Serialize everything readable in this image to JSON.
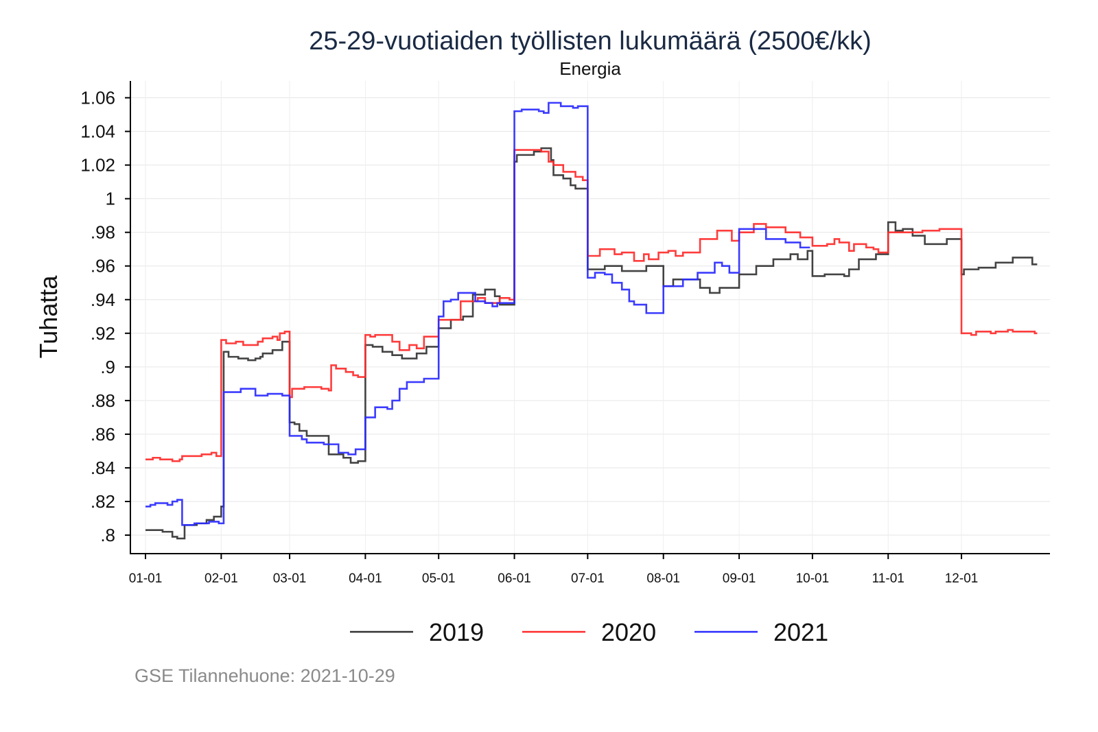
{
  "chart_data": {
    "type": "line",
    "title": "25-29-vuotiaiden työllisten lukumäärä (2500€/kk)",
    "subtitle": "Energia",
    "ylabel": "Tuhatta",
    "xlabel": "",
    "ylim": [
      0.789,
      1.07
    ],
    "yticks": [
      0.8,
      0.82,
      0.84,
      0.86,
      0.88,
      0.9,
      0.92,
      0.94,
      0.96,
      0.98,
      1.0,
      1.02,
      1.04,
      1.06
    ],
    "ytick_labels": [
      ".8",
      ".82",
      ".84",
      ".86",
      ".88",
      ".9",
      ".92",
      ".94",
      ".96",
      ".98",
      "1",
      "1.02",
      "1.04",
      "1.06"
    ],
    "xticks": [
      "01-01",
      "02-01",
      "03-01",
      "04-01",
      "05-01",
      "06-01",
      "07-01",
      "08-01",
      "09-01",
      "10-01",
      "11-01",
      "12-01"
    ],
    "grid": true,
    "legend_placement": "bottom",
    "step": true,
    "series": [
      {
        "name": "2019",
        "color": "#333333",
        "end": "12-31",
        "points": [
          [
            "01-01",
            0.803
          ],
          [
            "01-08",
            0.802
          ],
          [
            "01-12",
            0.799
          ],
          [
            "01-14",
            0.798
          ],
          [
            "01-17",
            0.806
          ],
          [
            "01-22",
            0.807
          ],
          [
            "01-26",
            0.809
          ],
          [
            "01-29",
            0.811
          ],
          [
            "02-01",
            0.817
          ],
          [
            "02-02",
            0.909
          ],
          [
            "02-04",
            0.906
          ],
          [
            "02-08",
            0.905
          ],
          [
            "02-12",
            0.904
          ],
          [
            "02-15",
            0.905
          ],
          [
            "02-17",
            0.906
          ],
          [
            "02-18",
            0.908
          ],
          [
            "02-22",
            0.91
          ],
          [
            "02-26",
            0.915
          ],
          [
            "03-01",
            0.867
          ],
          [
            "03-03",
            0.866
          ],
          [
            "03-05",
            0.862
          ],
          [
            "03-08",
            0.859
          ],
          [
            "03-17",
            0.848
          ],
          [
            "03-23",
            0.846
          ],
          [
            "03-26",
            0.843
          ],
          [
            "03-29",
            0.844
          ],
          [
            "04-01",
            0.913
          ],
          [
            "04-04",
            0.912
          ],
          [
            "04-08",
            0.909
          ],
          [
            "04-12",
            0.907
          ],
          [
            "04-16",
            0.905
          ],
          [
            "04-22",
            0.908
          ],
          [
            "04-26",
            0.912
          ],
          [
            "05-01",
            0.923
          ],
          [
            "05-06",
            0.928
          ],
          [
            "05-11",
            0.93
          ],
          [
            "05-15",
            0.943
          ],
          [
            "05-20",
            0.946
          ],
          [
            "05-24",
            0.942
          ],
          [
            "05-26",
            0.937
          ],
          [
            "06-01",
            1.022
          ],
          [
            "06-02",
            1.026
          ],
          [
            "06-09",
            1.028
          ],
          [
            "06-12",
            1.03
          ],
          [
            "06-16",
            1.023
          ],
          [
            "06-17",
            1.014
          ],
          [
            "06-21",
            1.012
          ],
          [
            "06-24",
            1.008
          ],
          [
            "06-26",
            1.006
          ],
          [
            "07-01",
            0.958
          ],
          [
            "07-08",
            0.96
          ],
          [
            "07-15",
            0.957
          ],
          [
            "07-25",
            0.96
          ],
          [
            "08-01",
            0.948
          ],
          [
            "08-05",
            0.952
          ],
          [
            "08-16",
            0.947
          ],
          [
            "08-20",
            0.944
          ],
          [
            "08-24",
            0.947
          ],
          [
            "09-01",
            0.955
          ],
          [
            "09-08",
            0.96
          ],
          [
            "09-15",
            0.964
          ],
          [
            "09-22",
            0.967
          ],
          [
            "09-25",
            0.964
          ],
          [
            "09-29",
            0.969
          ],
          [
            "10-01",
            0.954
          ],
          [
            "10-06",
            0.955
          ],
          [
            "10-14",
            0.954
          ],
          [
            "10-16",
            0.958
          ],
          [
            "10-20",
            0.964
          ],
          [
            "10-27",
            0.967
          ],
          [
            "11-01",
            0.986
          ],
          [
            "11-04",
            0.981
          ],
          [
            "11-07",
            0.982
          ],
          [
            "11-11",
            0.978
          ],
          [
            "11-16",
            0.973
          ],
          [
            "11-25",
            0.976
          ],
          [
            "12-01",
            0.955
          ],
          [
            "12-02",
            0.958
          ],
          [
            "12-08",
            0.959
          ],
          [
            "12-15",
            0.962
          ],
          [
            "12-22",
            0.965
          ],
          [
            "12-30",
            0.961
          ]
        ]
      },
      {
        "name": "2020",
        "color": "#ff2a2a",
        "end": "12-31",
        "points": [
          [
            "01-01",
            0.845
          ],
          [
            "01-04",
            0.846
          ],
          [
            "01-07",
            0.845
          ],
          [
            "01-12",
            0.844
          ],
          [
            "01-15",
            0.845
          ],
          [
            "01-16",
            0.847
          ],
          [
            "01-24",
            0.848
          ],
          [
            "01-28",
            0.849
          ],
          [
            "01-30",
            0.847
          ],
          [
            "02-01",
            0.916
          ],
          [
            "02-03",
            0.914
          ],
          [
            "02-07",
            0.915
          ],
          [
            "02-10",
            0.913
          ],
          [
            "02-16",
            0.915
          ],
          [
            "02-18",
            0.917
          ],
          [
            "02-22",
            0.918
          ],
          [
            "02-24",
            0.916
          ],
          [
            "02-25",
            0.92
          ],
          [
            "02-27",
            0.921
          ],
          [
            "03-01",
            0.882
          ],
          [
            "03-02",
            0.887
          ],
          [
            "03-07",
            0.888
          ],
          [
            "03-14",
            0.887
          ],
          [
            "03-17",
            0.886
          ],
          [
            "03-18",
            0.901
          ],
          [
            "03-20",
            0.899
          ],
          [
            "03-24",
            0.897
          ],
          [
            "03-27",
            0.895
          ],
          [
            "03-29",
            0.894
          ],
          [
            "04-01",
            0.919
          ],
          [
            "04-03",
            0.918
          ],
          [
            "04-05",
            0.919
          ],
          [
            "04-12",
            0.915
          ],
          [
            "04-15",
            0.91
          ],
          [
            "04-19",
            0.913
          ],
          [
            "04-22",
            0.911
          ],
          [
            "04-25",
            0.918
          ],
          [
            "05-01",
            0.928
          ],
          [
            "05-10",
            0.939
          ],
          [
            "05-17",
            0.941
          ],
          [
            "05-20",
            0.938
          ],
          [
            "05-26",
            0.941
          ],
          [
            "05-30",
            0.94
          ],
          [
            "06-01",
            1.029
          ],
          [
            "06-12",
            1.028
          ],
          [
            "06-15",
            1.022
          ],
          [
            "06-17",
            1.02
          ],
          [
            "06-21",
            1.016
          ],
          [
            "06-26",
            1.013
          ],
          [
            "06-29",
            1.011
          ],
          [
            "07-01",
            0.966
          ],
          [
            "07-06",
            0.97
          ],
          [
            "07-12",
            0.967
          ],
          [
            "07-15",
            0.968
          ],
          [
            "07-20",
            0.963
          ],
          [
            "07-24",
            0.967
          ],
          [
            "07-26",
            0.964
          ],
          [
            "07-30",
            0.968
          ],
          [
            "08-03",
            0.969
          ],
          [
            "08-06",
            0.966
          ],
          [
            "08-09",
            0.968
          ],
          [
            "08-16",
            0.976
          ],
          [
            "08-23",
            0.981
          ],
          [
            "08-29",
            0.975
          ],
          [
            "09-01",
            0.98
          ],
          [
            "09-07",
            0.985
          ],
          [
            "09-12",
            0.983
          ],
          [
            "09-20",
            0.98
          ],
          [
            "09-26",
            0.977
          ],
          [
            "10-01",
            0.972
          ],
          [
            "10-07",
            0.973
          ],
          [
            "10-10",
            0.976
          ],
          [
            "10-12",
            0.974
          ],
          [
            "10-16",
            0.969
          ],
          [
            "10-18",
            0.973
          ],
          [
            "10-23",
            0.971
          ],
          [
            "10-26",
            0.97
          ],
          [
            "10-28",
            0.968
          ],
          [
            "11-01",
            0.98
          ],
          [
            "11-15",
            0.981
          ],
          [
            "11-22",
            0.982
          ],
          [
            "12-01",
            0.92
          ],
          [
            "12-05",
            0.919
          ],
          [
            "12-07",
            0.921
          ],
          [
            "12-13",
            0.92
          ],
          [
            "12-15",
            0.921
          ],
          [
            "12-20",
            0.922
          ],
          [
            "12-22",
            0.921
          ],
          [
            "12-31",
            0.92
          ]
        ]
      },
      {
        "name": "2021",
        "color": "#2a2aff",
        "end": "09-29",
        "points": [
          [
            "01-01",
            0.817
          ],
          [
            "01-03",
            0.818
          ],
          [
            "01-05",
            0.819
          ],
          [
            "01-10",
            0.818
          ],
          [
            "01-12",
            0.82
          ],
          [
            "01-14",
            0.821
          ],
          [
            "01-16",
            0.806
          ],
          [
            "01-21",
            0.807
          ],
          [
            "01-27",
            0.808
          ],
          [
            "01-31",
            0.807
          ],
          [
            "02-02",
            0.885
          ],
          [
            "02-09",
            0.887
          ],
          [
            "02-15",
            0.883
          ],
          [
            "02-20",
            0.884
          ],
          [
            "02-26",
            0.883
          ],
          [
            "03-01",
            0.859
          ],
          [
            "03-06",
            0.857
          ],
          [
            "03-08",
            0.855
          ],
          [
            "03-15",
            0.854
          ],
          [
            "03-21",
            0.849
          ],
          [
            "03-25",
            0.848
          ],
          [
            "03-28",
            0.851
          ],
          [
            "04-01",
            0.87
          ],
          [
            "04-05",
            0.876
          ],
          [
            "04-10",
            0.875
          ],
          [
            "04-12",
            0.88
          ],
          [
            "04-15",
            0.887
          ],
          [
            "04-18",
            0.891
          ],
          [
            "04-25",
            0.893
          ],
          [
            "05-01",
            0.93
          ],
          [
            "05-03",
            0.939
          ],
          [
            "05-06",
            0.94
          ],
          [
            "05-09",
            0.944
          ],
          [
            "05-16",
            0.939
          ],
          [
            "05-20",
            0.938
          ],
          [
            "05-23",
            0.936
          ],
          [
            "05-25",
            0.938
          ],
          [
            "06-01",
            1.052
          ],
          [
            "06-04",
            1.053
          ],
          [
            "06-11",
            1.052
          ],
          [
            "06-13",
            1.051
          ],
          [
            "06-15",
            1.057
          ],
          [
            "06-20",
            1.055
          ],
          [
            "06-25",
            1.054
          ],
          [
            "06-27",
            1.055
          ],
          [
            "07-01",
            0.953
          ],
          [
            "07-04",
            0.956
          ],
          [
            "07-08",
            0.955
          ],
          [
            "07-11",
            0.95
          ],
          [
            "07-15",
            0.946
          ],
          [
            "07-18",
            0.939
          ],
          [
            "07-20",
            0.937
          ],
          [
            "07-25",
            0.932
          ],
          [
            "08-01",
            0.948
          ],
          [
            "08-09",
            0.952
          ],
          [
            "08-15",
            0.956
          ],
          [
            "08-22",
            0.962
          ],
          [
            "08-25",
            0.96
          ],
          [
            "08-28",
            0.956
          ],
          [
            "09-01",
            0.982
          ],
          [
            "09-12",
            0.976
          ],
          [
            "09-20",
            0.974
          ],
          [
            "09-26",
            0.971
          ]
        ]
      }
    ]
  },
  "caption": "GSE Tilannehuone: 2021-10-29"
}
